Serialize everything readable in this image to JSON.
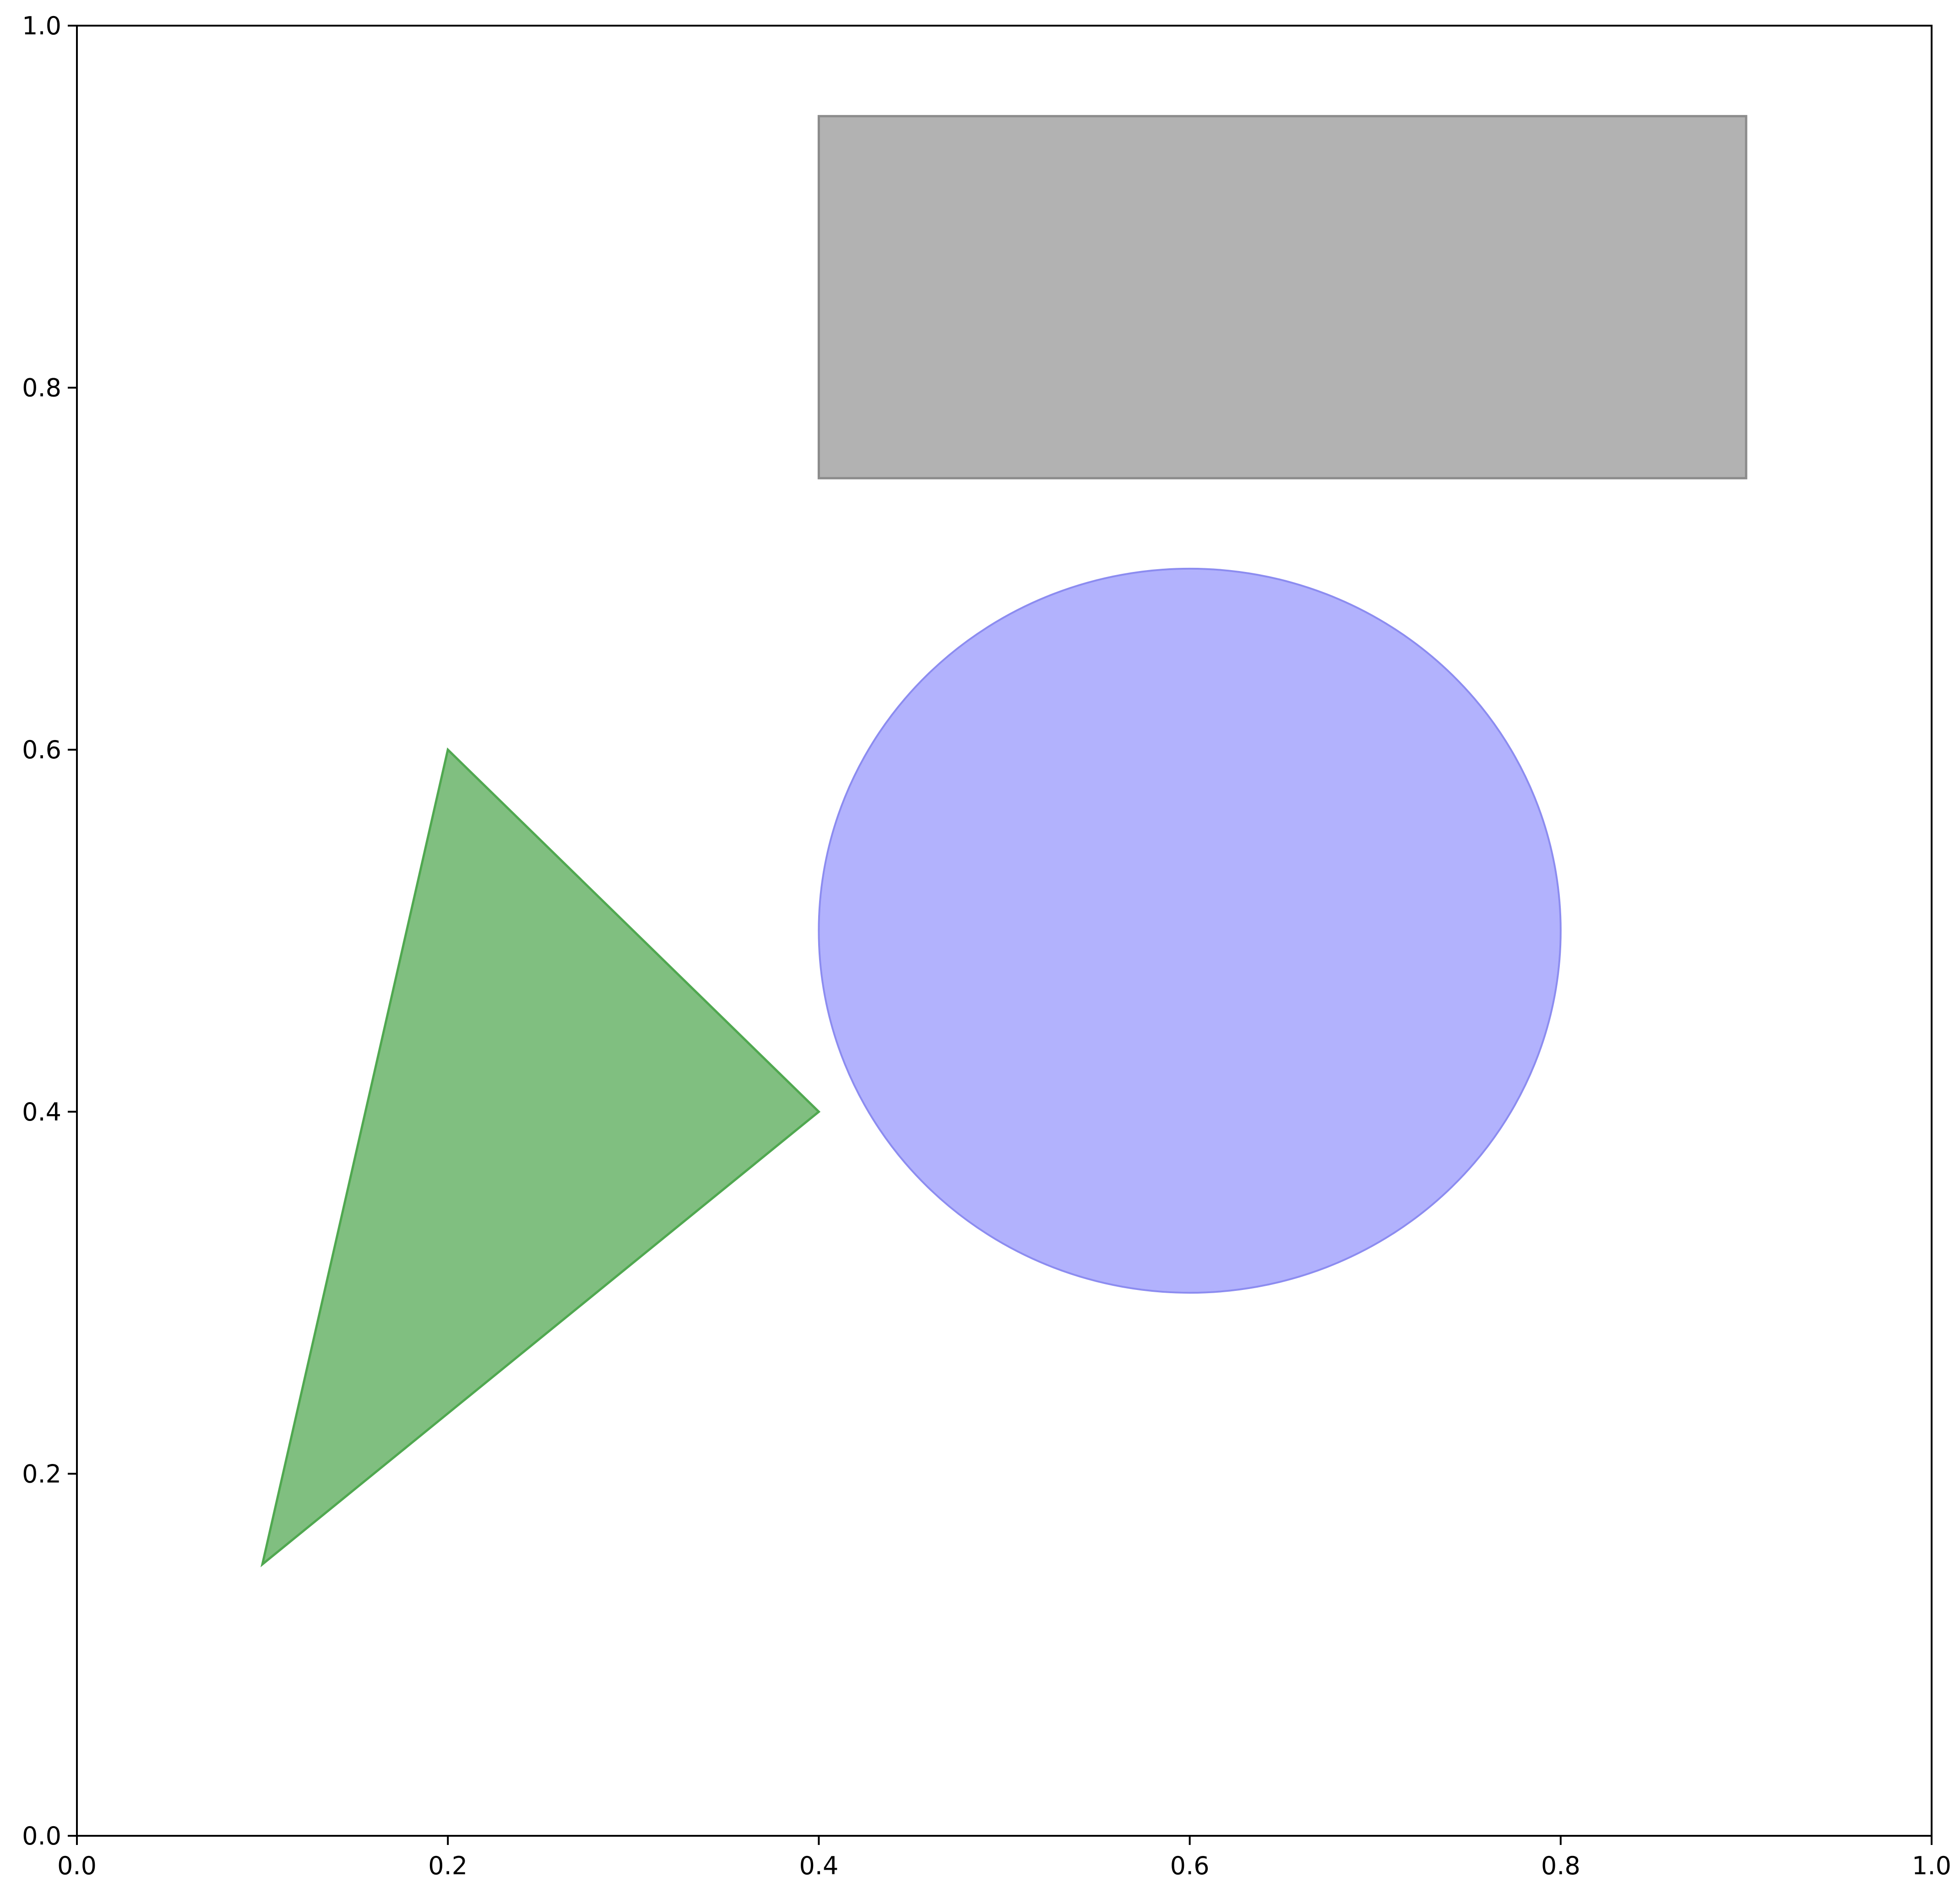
{
  "chart_data": {
    "type": "shapes",
    "title": "",
    "xlabel": "",
    "ylabel": "",
    "xlim": [
      0.0,
      1.0
    ],
    "ylim": [
      0.0,
      1.0
    ],
    "grid": false,
    "x_ticks": [
      0.0,
      0.2,
      0.4,
      0.6,
      0.8,
      1.0
    ],
    "y_ticks": [
      0.0,
      0.2,
      0.4,
      0.6,
      0.8,
      1.0
    ],
    "x_tick_labels": [
      "0.0",
      "0.2",
      "0.4",
      "0.6",
      "0.8",
      "1.0"
    ],
    "y_tick_labels": [
      "0.0",
      "0.2",
      "0.4",
      "0.6",
      "0.8",
      "1.0"
    ],
    "shapes": [
      {
        "name": "gray-rectangle",
        "kind": "rectangle",
        "x0": 0.4,
        "y0": 0.75,
        "x1": 0.9,
        "y1": 0.95,
        "fill": "#b2b2b2",
        "edge": "#8c8c8c"
      },
      {
        "name": "blue-ellipse",
        "kind": "ellipse",
        "cx": 0.6,
        "cy": 0.5,
        "rx": 0.2,
        "ry": 0.2,
        "fill": "#b2b2fd",
        "edge": "#8c8cf0"
      },
      {
        "name": "green-triangle",
        "kind": "polygon",
        "points": [
          [
            0.1,
            0.15
          ],
          [
            0.2,
            0.6
          ],
          [
            0.4,
            0.4
          ]
        ],
        "fill": "#80bf80",
        "edge": "#50a850"
      }
    ]
  }
}
